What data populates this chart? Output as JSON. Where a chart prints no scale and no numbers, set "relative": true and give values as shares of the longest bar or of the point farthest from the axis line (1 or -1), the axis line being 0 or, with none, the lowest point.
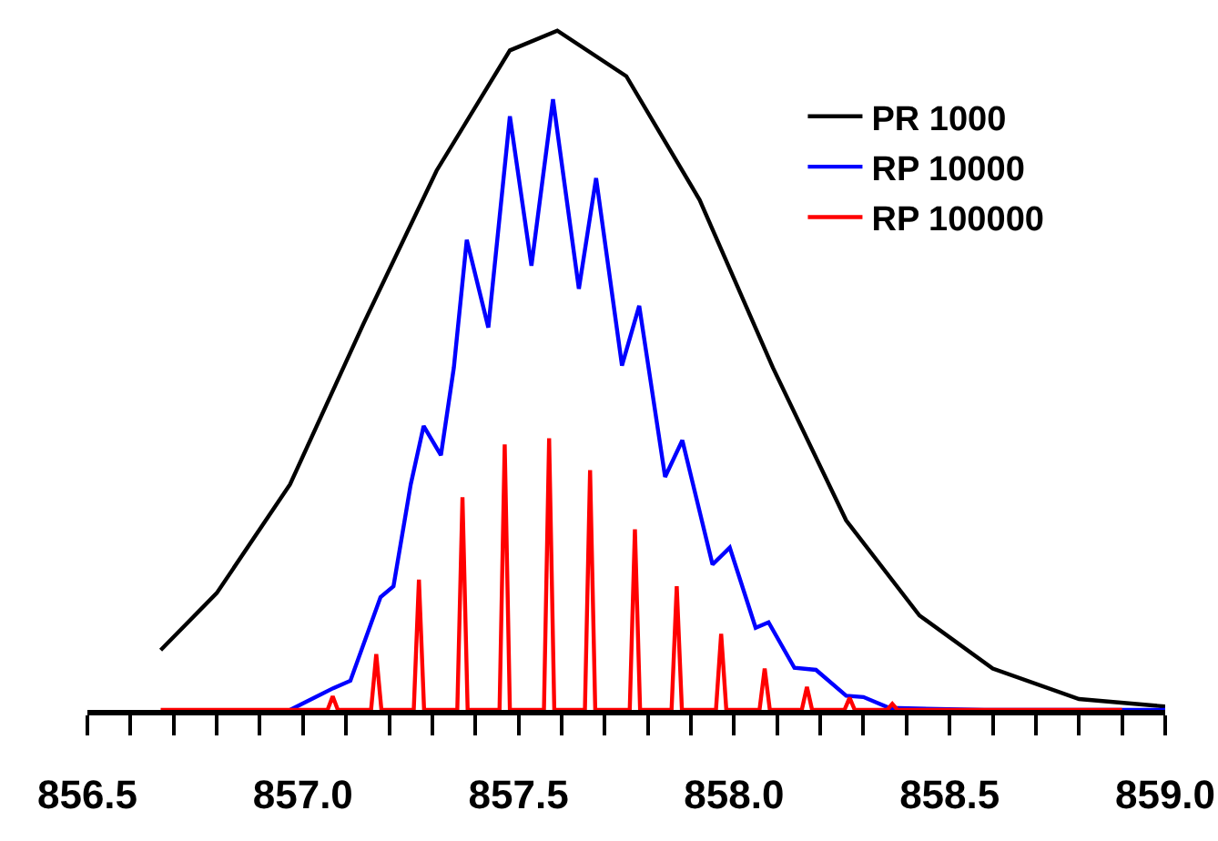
{
  "chart_data": {
    "type": "line",
    "relative": true,
    "legend": "top right",
    "tick_labels": "x",
    "xlim": [
      856.5,
      859.0
    ],
    "xticks": [
      {
        "value": 856.5,
        "label": "856.5"
      },
      {
        "value": 856.6,
        "label": null
      },
      {
        "value": 856.7,
        "label": null
      },
      {
        "value": 856.8,
        "label": null
      },
      {
        "value": 856.9,
        "label": null
      },
      {
        "value": 857.0,
        "label": "857.0"
      },
      {
        "value": 857.1,
        "label": null
      },
      {
        "value": 857.2,
        "label": null
      },
      {
        "value": 857.3,
        "label": null
      },
      {
        "value": 857.4,
        "label": null
      },
      {
        "value": 857.5,
        "label": "857.5"
      },
      {
        "value": 857.6,
        "label": null
      },
      {
        "value": 857.7,
        "label": null
      },
      {
        "value": 857.8,
        "label": null
      },
      {
        "value": 857.9,
        "label": null
      },
      {
        "value": 858.0,
        "label": "858.0"
      },
      {
        "value": 858.1,
        "label": null
      },
      {
        "value": 858.2,
        "label": null
      },
      {
        "value": 858.3,
        "label": null
      },
      {
        "value": 858.4,
        "label": null
      },
      {
        "value": 858.5,
        "label": "858.5"
      },
      {
        "value": 858.6,
        "label": null
      },
      {
        "value": 858.7,
        "label": null
      },
      {
        "value": 858.8,
        "label": null
      },
      {
        "value": 858.9,
        "label": null
      },
      {
        "value": 859.0,
        "label": "859.0"
      }
    ],
    "series": [
      {
        "name": "PR 1000",
        "color": "#000000",
        "x": [
          856.67,
          856.8,
          856.97,
          857.14,
          857.31,
          857.48,
          857.59,
          857.75,
          857.92,
          858.09,
          858.26,
          858.43,
          858.6,
          858.8,
          859.0
        ],
        "values": [
          0.088,
          0.172,
          0.332,
          0.568,
          0.794,
          0.971,
          1,
          0.933,
          0.751,
          0.504,
          0.279,
          0.139,
          0.061,
          0.016,
          0.005
        ]
      },
      {
        "name": "RP 10000",
        "color": "#0000ff",
        "x": [
          856.97,
          857.07,
          857.11,
          857.18,
          857.21,
          857.25,
          857.28,
          857.32,
          857.35,
          857.38,
          857.43,
          857.48,
          857.53,
          857.58,
          857.64,
          857.68,
          857.74,
          857.78,
          857.84,
          857.88,
          857.95,
          857.99,
          858.05,
          858.08,
          858.14,
          858.19,
          858.26,
          858.3,
          858.36,
          858.58,
          859.0
        ],
        "values": [
          0,
          0.032,
          0.043,
          0.166,
          0.182,
          0.332,
          0.418,
          0.375,
          0.504,
          0.692,
          0.563,
          0.874,
          0.654,
          0.899,
          0.62,
          0.783,
          0.507,
          0.595,
          0.343,
          0.397,
          0.214,
          0.239,
          0.121,
          0.129,
          0.062,
          0.059,
          0.021,
          0.019,
          0.003,
          0,
          0
        ]
      },
      {
        "name": "RP 100000",
        "color": "#ff0000",
        "x": [
          856.67,
          857.057,
          857.069,
          857.081,
          857.158,
          857.17,
          857.182,
          857.257,
          857.269,
          857.281,
          857.358,
          857.37,
          857.382,
          857.456,
          857.468,
          857.48,
          857.559,
          857.571,
          857.583,
          857.654,
          857.666,
          857.678,
          857.758,
          857.77,
          857.782,
          857.855,
          857.867,
          857.879,
          857.958,
          857.97,
          857.982,
          858.059,
          858.071,
          858.083,
          858.157,
          858.169,
          858.181,
          858.256,
          858.268,
          858.28,
          858.355,
          858.367,
          858.379,
          858.9
        ],
        "values": [
          0,
          0,
          0.02,
          0,
          0,
          0.082,
          0,
          0,
          0.192,
          0,
          0,
          0.313,
          0,
          0,
          0.391,
          0,
          0,
          0.4,
          0,
          0,
          0.353,
          0,
          0,
          0.266,
          0,
          0,
          0.182,
          0,
          0,
          0.112,
          0,
          0,
          0.061,
          0,
          0,
          0.034,
          0,
          0,
          0.018,
          0,
          0,
          0.009,
          0,
          0
        ]
      }
    ]
  }
}
